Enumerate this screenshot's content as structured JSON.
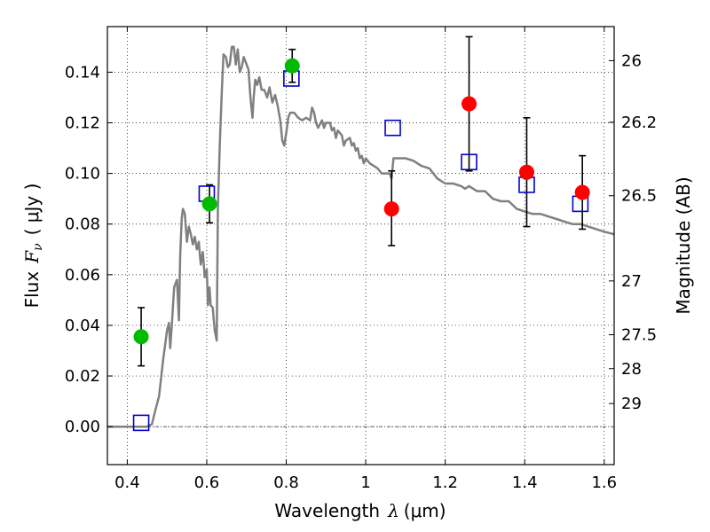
{
  "chart_data": {
    "type": "scatter",
    "xlabel": "Wavelength",
    "xlabel_symbol": "λ",
    "xlabel_unit": "(μm)",
    "ylabel": "Flux",
    "ylabel_symbol": "F",
    "ylabel_subscript": "ν",
    "ylabel_unit": "( μJy )",
    "ylabel_right": "Magnitude (AB)",
    "xlim": [
      0.35,
      1.625
    ],
    "ylim": [
      -0.015,
      0.158
    ],
    "grid": true,
    "x_ticks": [
      {
        "value": 0.4,
        "label": "0.4"
      },
      {
        "value": 0.6,
        "label": "0.6"
      },
      {
        "value": 0.8,
        "label": "0.8"
      },
      {
        "value": 1.0,
        "label": "1"
      },
      {
        "value": 1.2,
        "label": "1.2"
      },
      {
        "value": 1.4,
        "label": "1.4"
      },
      {
        "value": 1.6,
        "label": "1.6"
      }
    ],
    "y_ticks": [
      {
        "value": 0.0,
        "label": "0.00"
      },
      {
        "value": 0.02,
        "label": "0.02"
      },
      {
        "value": 0.04,
        "label": "0.04"
      },
      {
        "value": 0.06,
        "label": "0.06"
      },
      {
        "value": 0.08,
        "label": "0.08"
      },
      {
        "value": 0.1,
        "label": "0.10"
      },
      {
        "value": 0.12,
        "label": "0.12"
      },
      {
        "value": 0.14,
        "label": "0.14"
      }
    ],
    "right_ticks": [
      {
        "mag": 26,
        "label": "26"
      },
      {
        "mag": 26.2,
        "label": "26.2"
      },
      {
        "mag": 26.5,
        "label": "26.5"
      },
      {
        "mag": 27,
        "label": "27"
      },
      {
        "mag": 27.5,
        "label": "27.5"
      },
      {
        "mag": 28,
        "label": "28"
      },
      {
        "mag": 29,
        "label": "29"
      }
    ],
    "colors": {
      "model": "#808080",
      "green": "#00bb00",
      "red": "#ff0000",
      "square": "#0000cc",
      "errorbar": "#000000"
    },
    "series": [
      {
        "kind": "model-spectrum",
        "color": "#808080",
        "points": [
          [
            0.35,
            0.0
          ],
          [
            0.45,
            0.0
          ],
          [
            0.462,
            0.001
          ],
          [
            0.47,
            0.006
          ],
          [
            0.48,
            0.012
          ],
          [
            0.49,
            0.026
          ],
          [
            0.5,
            0.038
          ],
          [
            0.505,
            0.041
          ],
          [
            0.508,
            0.031
          ],
          [
            0.512,
            0.04
          ],
          [
            0.518,
            0.055
          ],
          [
            0.525,
            0.058
          ],
          [
            0.53,
            0.042
          ],
          [
            0.533,
            0.067
          ],
          [
            0.537,
            0.082
          ],
          [
            0.54,
            0.086
          ],
          [
            0.545,
            0.084
          ],
          [
            0.55,
            0.073
          ],
          [
            0.555,
            0.079
          ],
          [
            0.56,
            0.076
          ],
          [
            0.565,
            0.072
          ],
          [
            0.57,
            0.075
          ],
          [
            0.575,
            0.07
          ],
          [
            0.58,
            0.073
          ],
          [
            0.585,
            0.064
          ],
          [
            0.59,
            0.069
          ],
          [
            0.595,
            0.059
          ],
          [
            0.6,
            0.062
          ],
          [
            0.603,
            0.048
          ],
          [
            0.607,
            0.055
          ],
          [
            0.61,
            0.048
          ],
          [
            0.615,
            0.047
          ],
          [
            0.62,
            0.038
          ],
          [
            0.625,
            0.034
          ],
          [
            0.628,
            0.086
          ],
          [
            0.633,
            0.112
          ],
          [
            0.638,
            0.133
          ],
          [
            0.642,
            0.147
          ],
          [
            0.648,
            0.146
          ],
          [
            0.653,
            0.142
          ],
          [
            0.658,
            0.143
          ],
          [
            0.663,
            0.15
          ],
          [
            0.668,
            0.15
          ],
          [
            0.673,
            0.143
          ],
          [
            0.678,
            0.149
          ],
          [
            0.683,
            0.14
          ],
          [
            0.688,
            0.142
          ],
          [
            0.693,
            0.146
          ],
          [
            0.698,
            0.144
          ],
          [
            0.705,
            0.141
          ],
          [
            0.71,
            0.13
          ],
          [
            0.715,
            0.122
          ],
          [
            0.718,
            0.13
          ],
          [
            0.722,
            0.137
          ],
          [
            0.727,
            0.135
          ],
          [
            0.732,
            0.138
          ],
          [
            0.738,
            0.133
          ],
          [
            0.745,
            0.133
          ],
          [
            0.752,
            0.13
          ],
          [
            0.758,
            0.134
          ],
          [
            0.765,
            0.128
          ],
          [
            0.772,
            0.131
          ],
          [
            0.778,
            0.127
          ],
          [
            0.785,
            0.121
          ],
          [
            0.79,
            0.113
          ],
          [
            0.795,
            0.111
          ],
          [
            0.8,
            0.116
          ],
          [
            0.805,
            0.122
          ],
          [
            0.81,
            0.124
          ],
          [
            0.82,
            0.124
          ],
          [
            0.83,
            0.122
          ],
          [
            0.84,
            0.121
          ],
          [
            0.85,
            0.122
          ],
          [
            0.86,
            0.121
          ],
          [
            0.865,
            0.126
          ],
          [
            0.87,
            0.124
          ],
          [
            0.875,
            0.12
          ],
          [
            0.88,
            0.118
          ],
          [
            0.89,
            0.121
          ],
          [
            0.895,
            0.118
          ],
          [
            0.9,
            0.12
          ],
          [
            0.91,
            0.12
          ],
          [
            0.915,
            0.117
          ],
          [
            0.92,
            0.118
          ],
          [
            0.925,
            0.114
          ],
          [
            0.93,
            0.117
          ],
          [
            0.94,
            0.115
          ],
          [
            0.945,
            0.111
          ],
          [
            0.95,
            0.113
          ],
          [
            0.96,
            0.114
          ],
          [
            0.965,
            0.111
          ],
          [
            0.97,
            0.112
          ],
          [
            0.975,
            0.109
          ],
          [
            0.98,
            0.11
          ],
          [
            0.985,
            0.106
          ],
          [
            0.99,
            0.107
          ],
          [
            0.995,
            0.104
          ],
          [
            1.0,
            0.106
          ],
          [
            1.01,
            0.104
          ],
          [
            1.02,
            0.103
          ],
          [
            1.03,
            0.102
          ],
          [
            1.04,
            0.1
          ],
          [
            1.05,
            0.1
          ],
          [
            1.06,
            0.1
          ],
          [
            1.065,
            0.098
          ],
          [
            1.07,
            0.106
          ],
          [
            1.08,
            0.106
          ],
          [
            1.1,
            0.106
          ],
          [
            1.12,
            0.105
          ],
          [
            1.14,
            0.103
          ],
          [
            1.16,
            0.102
          ],
          [
            1.18,
            0.098
          ],
          [
            1.2,
            0.096
          ],
          [
            1.22,
            0.096
          ],
          [
            1.24,
            0.095
          ],
          [
            1.25,
            0.094
          ],
          [
            1.26,
            0.095
          ],
          [
            1.28,
            0.093
          ],
          [
            1.3,
            0.093
          ],
          [
            1.32,
            0.09
          ],
          [
            1.34,
            0.089
          ],
          [
            1.36,
            0.089
          ],
          [
            1.38,
            0.086
          ],
          [
            1.4,
            0.085
          ],
          [
            1.42,
            0.084
          ],
          [
            1.44,
            0.084
          ],
          [
            1.46,
            0.083
          ],
          [
            1.48,
            0.082
          ],
          [
            1.5,
            0.081
          ],
          [
            1.52,
            0.08
          ],
          [
            1.54,
            0.08
          ],
          [
            1.56,
            0.079
          ],
          [
            1.58,
            0.078
          ],
          [
            1.6,
            0.077
          ],
          [
            1.625,
            0.076
          ]
        ]
      },
      {
        "kind": "observed-green",
        "color": "#00bb00",
        "points": [
          {
            "x": 0.435,
            "y": 0.0355,
            "yerr": 0.0115
          },
          {
            "x": 0.607,
            "y": 0.088,
            "yerr": 0.0075
          },
          {
            "x": 0.815,
            "y": 0.1425,
            "yerr": 0.0065
          }
        ]
      },
      {
        "kind": "observed-red",
        "color": "#ff0000",
        "points": [
          {
            "x": 1.065,
            "y": 0.086,
            "yerr_low": 0.0145,
            "yerr_high": 0.015
          },
          {
            "x": 1.26,
            "y": 0.1275,
            "yerr": 0.0265
          },
          {
            "x": 1.405,
            "y": 0.1005,
            "yerr": 0.0215
          },
          {
            "x": 1.545,
            "y": 0.0925,
            "yerr": 0.0145
          }
        ]
      },
      {
        "kind": "model-square",
        "color": "#0000cc",
        "points": [
          {
            "x": 0.435,
            "y": 0.0015
          },
          {
            "x": 0.6,
            "y": 0.092
          },
          {
            "x": 0.813,
            "y": 0.1375
          },
          {
            "x": 1.068,
            "y": 0.118
          },
          {
            "x": 1.26,
            "y": 0.1045
          },
          {
            "x": 1.405,
            "y": 0.0955
          },
          {
            "x": 1.54,
            "y": 0.088
          }
        ]
      }
    ]
  }
}
